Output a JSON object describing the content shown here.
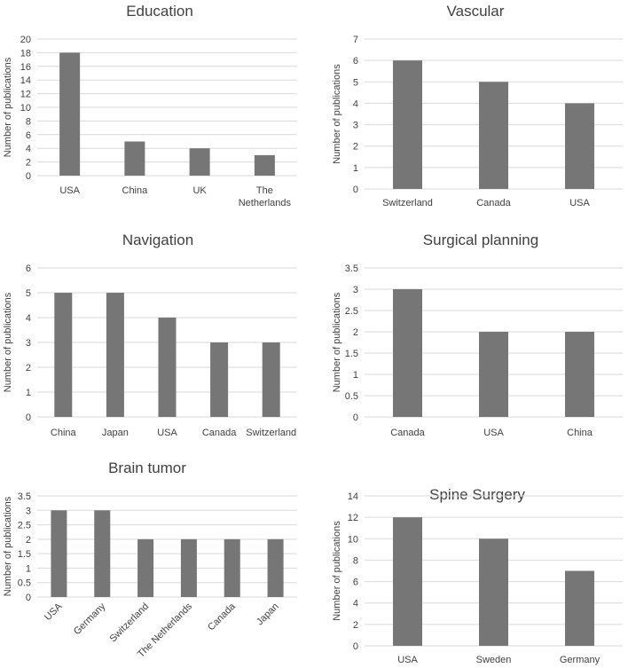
{
  "chart_data": [
    {
      "type": "bar",
      "title": "Education",
      "ylabel": "Number of publications",
      "xlabel": "",
      "ylim": [
        0,
        20
      ],
      "ystep": 2,
      "categories": [
        "USA",
        "China",
        "UK",
        "The Netherlands"
      ],
      "category_lines": [
        [
          "USA"
        ],
        [
          "China"
        ],
        [
          "UK"
        ],
        [
          "The",
          "Netherlands"
        ]
      ],
      "values": [
        18,
        5,
        4,
        3
      ],
      "bar_color": "#767676",
      "grid": true
    },
    {
      "type": "bar",
      "title": "Vascular",
      "ylabel": "Number of publications",
      "xlabel": "",
      "ylim": [
        0,
        7
      ],
      "ystep": 1,
      "categories": [
        "Switzerland",
        "Canada",
        "USA"
      ],
      "category_lines": [
        [
          "Switzerland"
        ],
        [
          "Canada"
        ],
        [
          "USA"
        ]
      ],
      "values": [
        6,
        5,
        4
      ],
      "bar_color": "#767676",
      "grid": true
    },
    {
      "type": "bar",
      "title": "Navigation",
      "ylabel": "Number of publications",
      "xlabel": "",
      "ylim": [
        0,
        6
      ],
      "ystep": 1,
      "categories": [
        "China",
        "Japan",
        "USA",
        "Canada",
        "Switzerland"
      ],
      "category_lines": [
        [
          "China"
        ],
        [
          "Japan"
        ],
        [
          "USA"
        ],
        [
          "Canada"
        ],
        [
          "Switzerland"
        ]
      ],
      "values": [
        5,
        5,
        4,
        3,
        3
      ],
      "bar_color": "#767676",
      "grid": true
    },
    {
      "type": "bar",
      "title": "Surgical planning",
      "ylabel": "Number of publications",
      "xlabel": "",
      "ylim": [
        0,
        3.5
      ],
      "ystep": 0.5,
      "categories": [
        "Canada",
        "USA",
        "China"
      ],
      "category_lines": [
        [
          "Canada"
        ],
        [
          "USA"
        ],
        [
          "China"
        ]
      ],
      "values": [
        3,
        2,
        2
      ],
      "bar_color": "#767676",
      "grid": true
    },
    {
      "type": "bar",
      "title": "Brain tumor",
      "ylabel": "Number of publications",
      "xlabel": "",
      "ylim": [
        0,
        3.5
      ],
      "ystep": 0.5,
      "categories": [
        "USA",
        "Germany",
        "Switzerland",
        "The Netherlands",
        "Canada",
        "Japan"
      ],
      "category_lines": [
        [
          "USA"
        ],
        [
          "Germany"
        ],
        [
          "Switzerland"
        ],
        [
          "The Netherlands"
        ],
        [
          "Canada"
        ],
        [
          "Japan"
        ]
      ],
      "rotated_labels": true,
      "values": [
        3,
        3,
        2,
        2,
        2,
        2
      ],
      "bar_color": "#767676",
      "grid": true
    },
    {
      "type": "bar",
      "title": "Spine Surgery",
      "ylabel": "Number of publications",
      "xlabel": "",
      "ylim": [
        0,
        14
      ],
      "ystep": 2,
      "categories": [
        "USA",
        "Sweden",
        "Germany"
      ],
      "category_lines": [
        [
          "USA"
        ],
        [
          "Sweden"
        ],
        [
          "Germany"
        ]
      ],
      "values": [
        12,
        10,
        7
      ],
      "bar_color": "#767676",
      "grid": true
    }
  ]
}
